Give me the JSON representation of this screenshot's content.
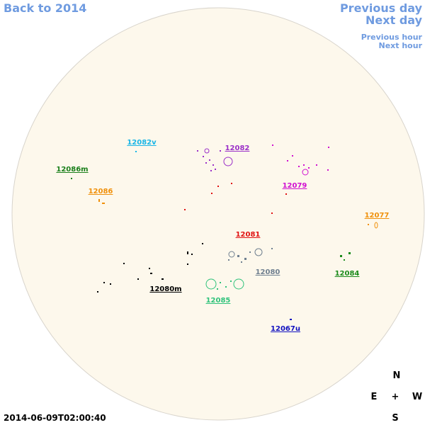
{
  "navigation": {
    "back": "Back to 2014",
    "previous_day": "Previous day",
    "next_day": "Next day",
    "previous_hour": "Previous hour",
    "next_hour": "Next hour"
  },
  "regions": [
    {
      "label": "12082v",
      "color": "#19b5e6"
    },
    {
      "label": "12082",
      "color": "#9b30c8"
    },
    {
      "label": "12086m",
      "color": "#1a7f1a"
    },
    {
      "label": "12086",
      "color": "#f0900a"
    },
    {
      "label": "12079",
      "color": "#d010d0"
    },
    {
      "label": "12077",
      "color": "#f0900a"
    },
    {
      "label": "12081",
      "color": "#e01010"
    },
    {
      "label": "12080",
      "color": "#708090"
    },
    {
      "label": "12084",
      "color": "#1a8a1a"
    },
    {
      "label": "12080m",
      "color": "#000000"
    },
    {
      "label": "12085",
      "color": "#2ec27a"
    },
    {
      "label": "12067u",
      "color": "#1010c0"
    }
  ],
  "compass": {
    "north": "N",
    "east": "E",
    "center": "+",
    "west": "W",
    "south": "S"
  },
  "timestamp": "2014-06-09T02:00:40"
}
